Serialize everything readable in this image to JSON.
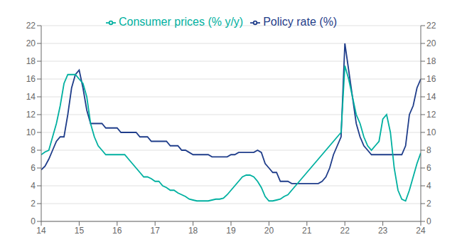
{
  "chart_data": {
    "type": "line",
    "x": [
      14.0,
      14.1,
      14.2,
      14.3,
      14.4,
      14.5,
      14.6,
      14.7,
      14.8,
      14.9,
      15.0,
      15.1,
      15.2,
      15.3,
      15.4,
      15.5,
      15.6,
      15.7,
      15.8,
      15.9,
      16.0,
      16.1,
      16.2,
      16.3,
      16.4,
      16.5,
      16.6,
      16.7,
      16.8,
      16.9,
      17.0,
      17.1,
      17.2,
      17.3,
      17.4,
      17.5,
      17.6,
      17.7,
      17.8,
      17.9,
      18.0,
      18.1,
      18.2,
      18.3,
      18.4,
      18.5,
      18.6,
      18.7,
      18.8,
      18.9,
      19.0,
      19.1,
      19.2,
      19.3,
      19.4,
      19.5,
      19.6,
      19.7,
      19.8,
      19.9,
      20.0,
      20.1,
      20.2,
      20.3,
      20.4,
      20.5,
      20.6,
      20.7,
      20.8,
      20.9,
      21.0,
      21.1,
      21.2,
      21.3,
      21.4,
      21.5,
      21.6,
      21.7,
      21.8,
      21.9,
      22.0,
      22.1,
      22.2,
      22.3,
      22.4,
      22.5,
      22.6,
      22.7,
      22.8,
      22.9,
      23.0,
      23.1,
      23.2,
      23.3,
      23.4,
      23.5,
      23.6,
      23.7,
      23.8,
      23.9,
      24.0
    ],
    "series": [
      {
        "name": "Policy rate (%)",
        "color": "#1f3d8a",
        "values": [
          5.8,
          6.2,
          7.0,
          8.0,
          9.0,
          9.5,
          9.5,
          12.0,
          15.0,
          16.5,
          17.0,
          15.0,
          12.5,
          11.0,
          11.0,
          11.0,
          11.0,
          10.5,
          10.5,
          10.5,
          10.5,
          10.0,
          10.0,
          10.0,
          10.0,
          10.0,
          9.5,
          9.5,
          9.5,
          9.0,
          9.0,
          9.0,
          9.0,
          9.0,
          8.5,
          8.5,
          8.5,
          8.0,
          8.0,
          7.75,
          7.5,
          7.5,
          7.5,
          7.5,
          7.5,
          7.25,
          7.25,
          7.25,
          7.25,
          7.25,
          7.5,
          7.5,
          7.75,
          7.75,
          7.75,
          7.75,
          7.75,
          8.0,
          7.75,
          6.5,
          6.0,
          5.5,
          5.5,
          4.5,
          4.5,
          4.5,
          4.25,
          4.25,
          4.25,
          4.25,
          4.25,
          4.25,
          4.25,
          4.25,
          4.5,
          5.0,
          6.0,
          7.5,
          8.5,
          9.5,
          20.0,
          17.0,
          14.0,
          11.0,
          9.5,
          8.5,
          8.0,
          7.5,
          7.5,
          7.5,
          7.5,
          7.5,
          7.5,
          7.5,
          7.5,
          7.5,
          8.5,
          12.0,
          13.0,
          15.0,
          16.0
        ]
      },
      {
        "name": "Consumer prices (% y/y)",
        "color": "#00b0a0",
        "values": [
          7.5,
          7.8,
          8.0,
          9.5,
          11.0,
          13.0,
          15.5,
          16.5,
          16.5,
          16.5,
          16.0,
          15.5,
          14.0,
          11.0,
          9.5,
          8.5,
          8.0,
          7.5,
          7.5,
          7.5,
          7.5,
          7.5,
          7.5,
          7.0,
          6.5,
          6.0,
          5.5,
          5.0,
          5.0,
          4.8,
          4.5,
          4.5,
          4.0,
          3.8,
          3.5,
          3.5,
          3.2,
          3.0,
          2.8,
          2.5,
          2.4,
          2.3,
          2.3,
          2.3,
          2.3,
          2.4,
          2.5,
          2.5,
          2.6,
          3.0,
          3.5,
          4.0,
          4.5,
          5.0,
          5.2,
          5.2,
          5.0,
          4.5,
          3.8,
          2.8,
          2.3,
          2.3,
          2.4,
          2.5,
          2.8,
          3.0,
          3.5,
          4.0,
          4.5,
          5.0,
          5.5,
          6.0,
          6.5,
          7.0,
          7.5,
          8.0,
          8.5,
          9.0,
          9.5,
          10.0,
          17.5,
          16.0,
          14.0,
          12.0,
          11.0,
          9.5,
          8.5,
          8.0,
          8.5,
          9.0,
          11.5,
          12.0,
          10.0,
          6.0,
          3.5,
          2.5,
          2.3,
          3.5,
          5.0,
          6.5,
          7.7
        ]
      }
    ],
    "xlim": [
      14,
      24
    ],
    "xticks": [
      14,
      15,
      16,
      17,
      18,
      19,
      20,
      21,
      22,
      23,
      24
    ],
    "ylim": [
      0,
      22
    ],
    "yticks": [
      0,
      2,
      4,
      6,
      8,
      10,
      12,
      14,
      16,
      18,
      20,
      22
    ],
    "y2lim": [
      0,
      22
    ],
    "y2ticks": [
      0,
      2,
      4,
      6,
      8,
      10,
      12,
      14,
      16,
      18,
      20,
      22
    ],
    "grid": true,
    "legend": "upper left"
  }
}
